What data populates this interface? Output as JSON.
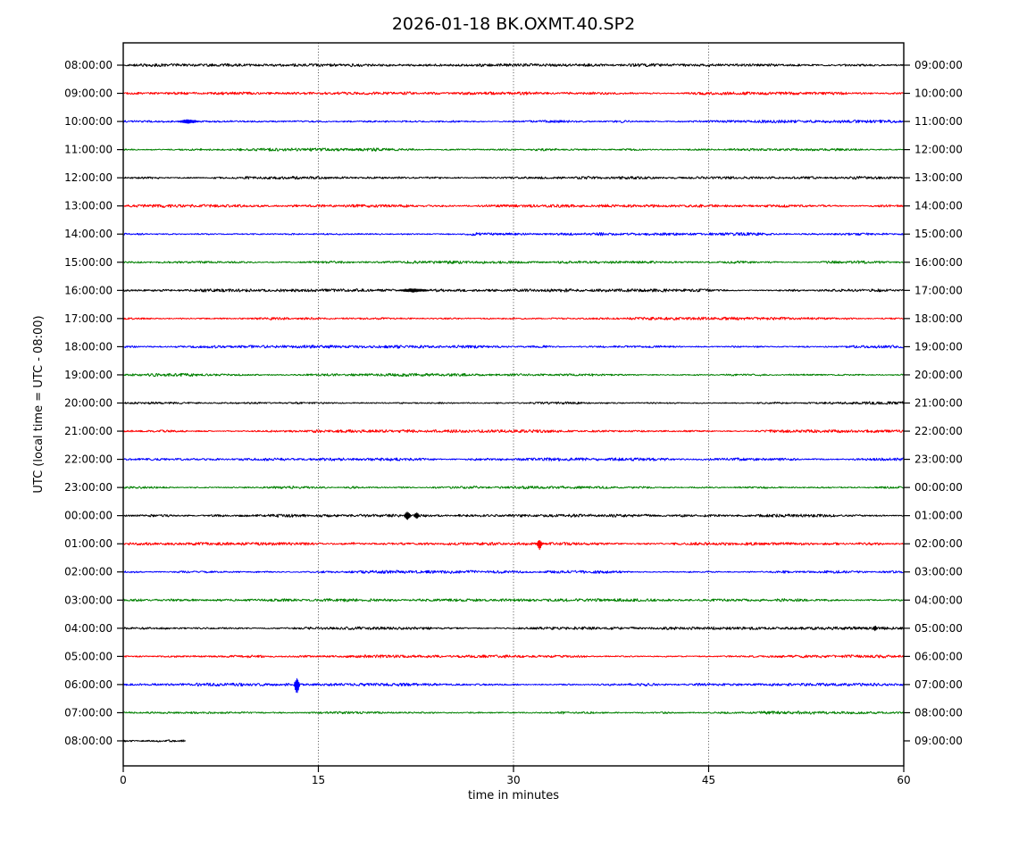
{
  "chart_data": {
    "type": "line",
    "subtype": "helicorder-dayplot",
    "title": "2026-01-18 BK.OXMT.40.SP2",
    "xlabel": "time in minutes",
    "ylabel": "UTC (local time = UTC - 08:00)",
    "xlim": [
      0,
      60
    ],
    "x_ticks": [
      0,
      15,
      30,
      45,
      60
    ],
    "grid_minutes": [
      15,
      30,
      45
    ],
    "grid_style": "dotted-vertical",
    "minutes_per_line": 60,
    "trace_color_cycle": [
      "#000000",
      "#ff0000",
      "#0000ff",
      "#008000"
    ],
    "rows": [
      {
        "start": "08:00:00",
        "end": "09:00:00",
        "color": "#000000",
        "end_minute": 60,
        "events": []
      },
      {
        "start": "09:00:00",
        "end": "10:00:00",
        "color": "#ff0000",
        "end_minute": 60,
        "events": []
      },
      {
        "start": "10:00:00",
        "end": "11:00:00",
        "color": "#0000ff",
        "end_minute": 60,
        "events": [
          {
            "m": 5.0,
            "up": 1.7,
            "down": 1.7,
            "w": 0.9
          }
        ]
      },
      {
        "start": "11:00:00",
        "end": "12:00:00",
        "color": "#008000",
        "end_minute": 60,
        "events": []
      },
      {
        "start": "12:00:00",
        "end": "13:00:00",
        "color": "#000000",
        "end_minute": 60,
        "events": []
      },
      {
        "start": "13:00:00",
        "end": "14:00:00",
        "color": "#ff0000",
        "end_minute": 60,
        "events": []
      },
      {
        "start": "14:00:00",
        "end": "15:00:00",
        "color": "#0000ff",
        "end_minute": 60,
        "events": []
      },
      {
        "start": "15:00:00",
        "end": "16:00:00",
        "color": "#008000",
        "end_minute": 60,
        "events": []
      },
      {
        "start": "16:00:00",
        "end": "17:00:00",
        "color": "#000000",
        "end_minute": 60,
        "events": [
          {
            "m": 22.3,
            "up": 1.5,
            "down": 1.5,
            "w": 1.3
          }
        ]
      },
      {
        "start": "17:00:00",
        "end": "18:00:00",
        "color": "#ff0000",
        "end_minute": 60,
        "events": []
      },
      {
        "start": "18:00:00",
        "end": "19:00:00",
        "color": "#0000ff",
        "end_minute": 60,
        "events": []
      },
      {
        "start": "19:00:00",
        "end": "20:00:00",
        "color": "#008000",
        "end_minute": 60,
        "events": []
      },
      {
        "start": "20:00:00",
        "end": "21:00:00",
        "color": "#000000",
        "end_minute": 60,
        "events": []
      },
      {
        "start": "21:00:00",
        "end": "22:00:00",
        "color": "#ff0000",
        "end_minute": 60,
        "events": []
      },
      {
        "start": "22:00:00",
        "end": "23:00:00",
        "color": "#0000ff",
        "end_minute": 60,
        "events": []
      },
      {
        "start": "23:00:00",
        "end": "00:00:00",
        "color": "#008000",
        "end_minute": 60,
        "events": []
      },
      {
        "start": "00:00:00",
        "end": "01:00:00",
        "color": "#000000",
        "end_minute": 60,
        "events": [
          {
            "m": 21.85,
            "up": 4.2,
            "down": 4.2,
            "w": 0.3
          },
          {
            "m": 22.55,
            "up": 3.2,
            "down": 3.2,
            "w": 0.24
          }
        ]
      },
      {
        "start": "01:00:00",
        "end": "02:00:00",
        "color": "#ff0000",
        "end_minute": 60,
        "events": [
          {
            "m": 32.0,
            "up": 4.0,
            "down": 6.0,
            "w": 0.25
          }
        ]
      },
      {
        "start": "02:00:00",
        "end": "03:00:00",
        "color": "#0000ff",
        "end_minute": 60,
        "events": []
      },
      {
        "start": "03:00:00",
        "end": "04:00:00",
        "color": "#008000",
        "end_minute": 60,
        "events": []
      },
      {
        "start": "04:00:00",
        "end": "05:00:00",
        "color": "#000000",
        "end_minute": 60,
        "events": [
          {
            "m": 57.8,
            "up": 2.4,
            "down": 2.4,
            "w": 0.2
          }
        ]
      },
      {
        "start": "05:00:00",
        "end": "06:00:00",
        "color": "#ff0000",
        "end_minute": 60,
        "events": []
      },
      {
        "start": "06:00:00",
        "end": "07:00:00",
        "color": "#0000ff",
        "end_minute": 60,
        "events": [
          {
            "m": 13.35,
            "up": 6.5,
            "down": 10.5,
            "w": 0.25
          }
        ]
      },
      {
        "start": "07:00:00",
        "end": "08:00:00",
        "color": "#008000",
        "end_minute": 60,
        "events": []
      },
      {
        "start": "08:00:00",
        "end": "09:00:00",
        "color": "#000000",
        "end_minute": 4.8,
        "events": []
      }
    ]
  }
}
